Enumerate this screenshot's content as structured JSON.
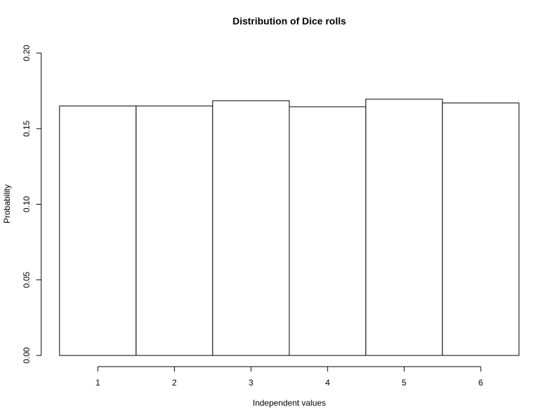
{
  "chart_data": {
    "type": "bar",
    "title": "Distribution of Dice rolls",
    "xlabel": "Independent values",
    "ylabel": "Probability",
    "categories": [
      "1",
      "2",
      "3",
      "4",
      "5",
      "6"
    ],
    "values": [
      0.165,
      0.165,
      0.1685,
      0.1645,
      0.1695,
      0.167
    ],
    "ylim": [
      0,
      0.2
    ],
    "y_ticks": [
      0.0,
      0.05,
      0.1,
      0.15,
      0.2
    ],
    "y_tick_labels": [
      "0.00",
      "0.05",
      "0.10",
      "0.15",
      "0.20"
    ],
    "x_ticks": [
      1,
      2,
      3,
      4,
      5,
      6
    ],
    "x_tick_labels": [
      "1",
      "2",
      "3",
      "4",
      "5",
      "6"
    ],
    "grid": false,
    "bar_fill": "#ffffff",
    "bar_stroke": "#000000"
  }
}
